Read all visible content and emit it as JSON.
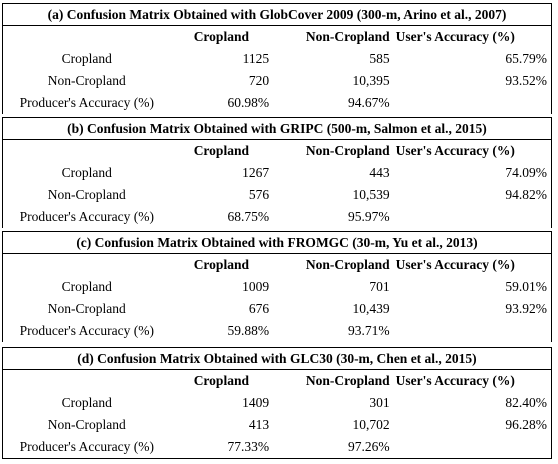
{
  "tables": [
    {
      "title": "(a) Confusion Matrix Obtained with GlobCover 2009 (300-m, Arino et al., 2007)",
      "header": [
        "",
        "Cropland",
        "Non-Cropland",
        "User's Accuracy (%)"
      ],
      "rows": [
        [
          "Cropland",
          "1125",
          "585",
          "65.79%"
        ],
        [
          "Non-Cropland",
          "720",
          "10,395",
          "93.52%"
        ],
        [
          "Producer's Accuracy (%)",
          "60.98%",
          "94.67%",
          ""
        ]
      ]
    },
    {
      "title": "(b) Confusion Matrix Obtained with GRIPC (500-m, Salmon et al., 2015)",
      "header": [
        "",
        "Cropland",
        "Non-Cropland",
        "User's Accuracy (%)"
      ],
      "rows": [
        [
          "Cropland",
          "1267",
          "443",
          "74.09%"
        ],
        [
          "Non-Cropland",
          "576",
          "10,539",
          "94.82%"
        ],
        [
          "Producer's Accuracy (%)",
          "68.75%",
          "95.97%",
          ""
        ]
      ]
    },
    {
      "title": "(c) Confusion Matrix Obtained with FROMGC (30-m, Yu et al., 2013)",
      "header": [
        "",
        "Cropland",
        "Non-Cropland",
        "User's Accuracy (%)"
      ],
      "rows": [
        [
          "Cropland",
          "1009",
          "701",
          "59.01%"
        ],
        [
          "Non-Cropland",
          "676",
          "10,439",
          "93.92%"
        ],
        [
          "Producer's Accuracy (%)",
          "59.88%",
          "93.71%",
          ""
        ]
      ]
    },
    {
      "title": "(d) Confusion Matrix Obtained with GLC30 (30-m, Chen et al., 2015)",
      "header": [
        "",
        "Cropland",
        "Non-Cropland",
        "User's Accuracy (%)"
      ],
      "rows": [
        [
          "Cropland",
          "1409",
          "301",
          "82.40%"
        ],
        [
          "Non-Cropland",
          "413",
          "10,702",
          "96.28%"
        ],
        [
          "Producer's Accuracy (%)",
          "77.33%",
          "97.26%",
          ""
        ]
      ]
    }
  ]
}
